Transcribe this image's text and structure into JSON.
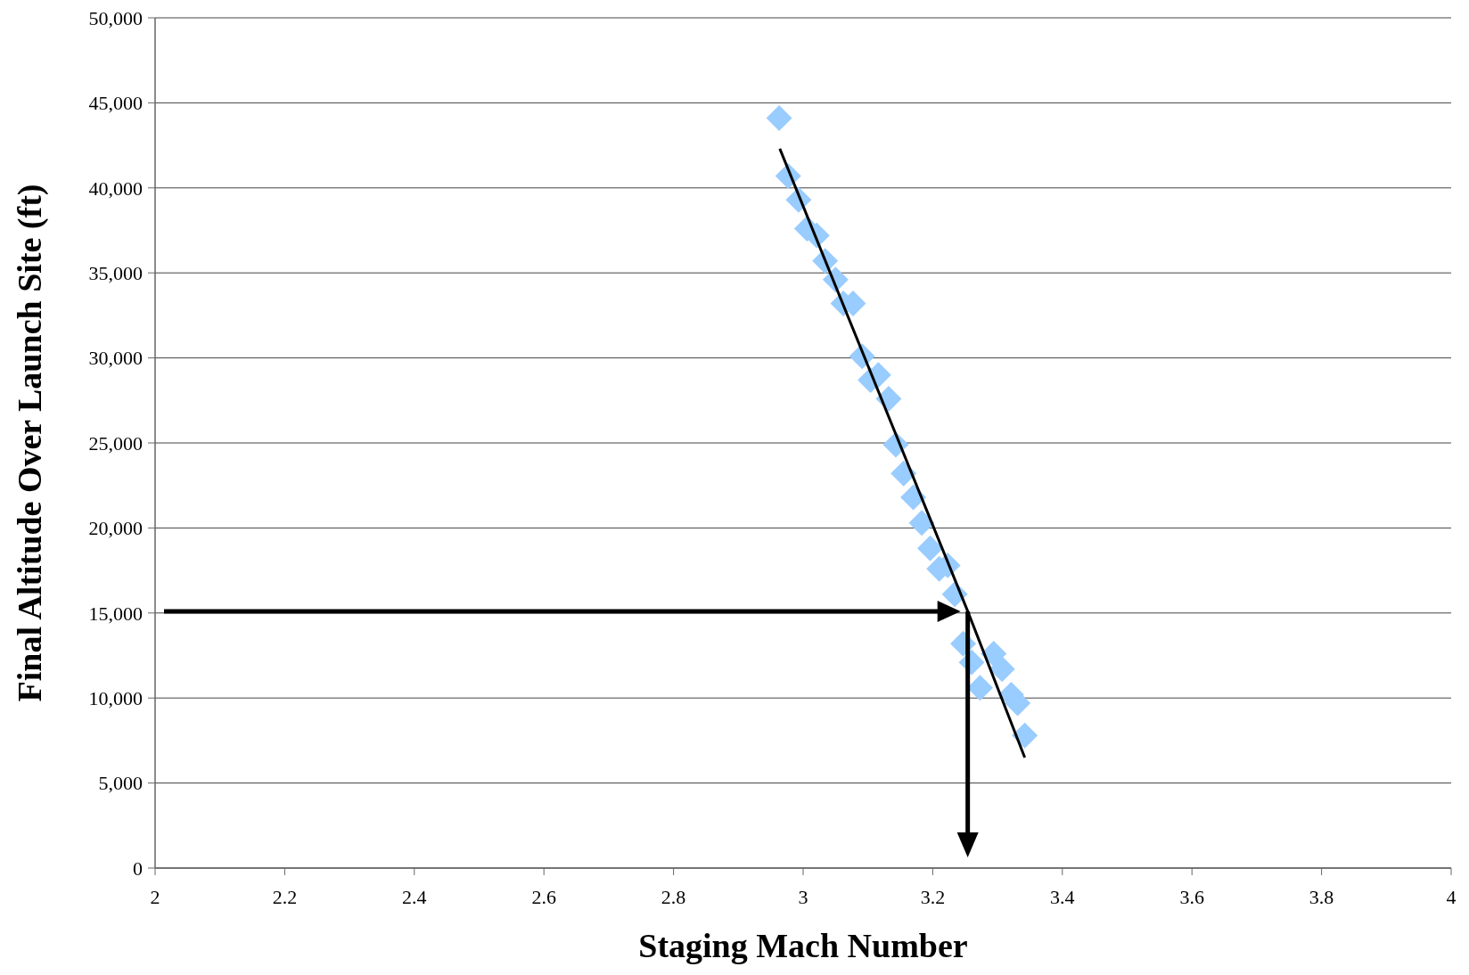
{
  "chart_data": {
    "type": "scatter",
    "xlabel": "Staging Mach Number",
    "ylabel": "Final Altitude Over Launch Site (ft)",
    "xlim": [
      2,
      4
    ],
    "xticks": [
      2,
      2.2,
      2.4,
      2.6,
      2.8,
      3,
      3.2,
      3.4,
      3.6,
      3.8,
      4
    ],
    "ylim": [
      0,
      50000
    ],
    "yticks": [
      {
        "value": 0,
        "label": "0"
      },
      {
        "value": 5000,
        "label": "5,000"
      },
      {
        "value": 10000,
        "label": "10,000"
      },
      {
        "value": 15000,
        "label": "15,000"
      },
      {
        "value": 20000,
        "label": "20,000"
      },
      {
        "value": 25000,
        "label": "25,000"
      },
      {
        "value": 30000,
        "label": "30,000"
      },
      {
        "value": 35000,
        "label": "35,000"
      },
      {
        "value": 40000,
        "label": "40,000"
      },
      {
        "value": 45000,
        "label": "45,000"
      },
      {
        "value": 50000,
        "label": "50,000"
      }
    ],
    "grid": "y",
    "series": [
      {
        "marker": "diamond",
        "color": "#99ccff",
        "x": [
          2.963,
          2.977,
          2.993,
          3.006,
          3.021,
          3.034,
          3.05,
          3.062,
          3.077,
          3.091,
          3.104,
          3.116,
          3.132,
          3.143,
          3.155,
          3.17,
          3.183,
          3.196,
          3.21,
          3.223,
          3.234,
          3.247,
          3.26,
          3.273,
          3.294,
          3.307,
          3.321,
          3.331,
          3.342
        ],
        "values": [
          44100,
          40700,
          39300,
          37600,
          37200,
          35700,
          34600,
          33200,
          33200,
          30100,
          28700,
          29000,
          27600,
          24900,
          23200,
          21800,
          20300,
          18800,
          17600,
          17800,
          16100,
          13200,
          12100,
          10600,
          12600,
          11700,
          10200,
          9700,
          7800
        ]
      },
      {
        "type": "line",
        "color": "#000000",
        "x": [
          2.964,
          3.254,
          3.342
        ],
        "values": [
          42300,
          15100,
          6500
        ]
      }
    ]
  }
}
